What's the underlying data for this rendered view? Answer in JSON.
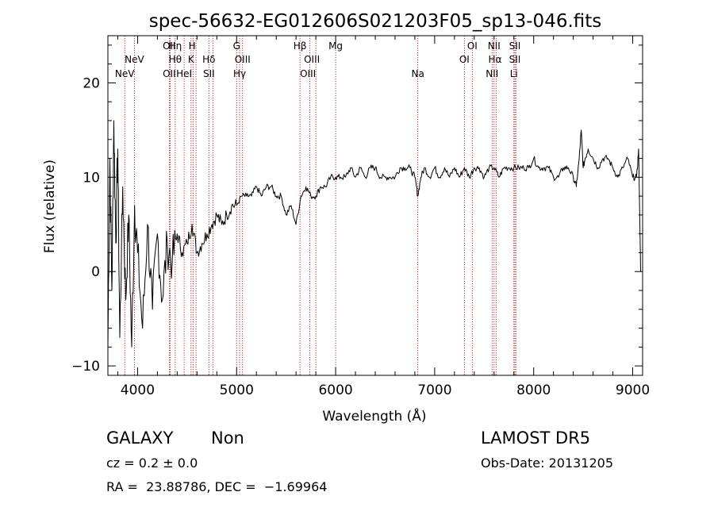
{
  "chart_data": {
    "type": "line",
    "title": "spec-56632-EG012606S021203F05_sp13-046.fits",
    "xlabel": "Wavelength (Å)",
    "ylabel": "Flux (relative)",
    "xlim": [
      3700,
      9100
    ],
    "ylim": [
      -11,
      25
    ],
    "xticks": [
      4000,
      5000,
      6000,
      7000,
      8000,
      9000
    ],
    "yticks": [
      -10,
      0,
      10,
      20
    ],
    "grid": false,
    "series": [
      {
        "x": [
          3700,
          3720,
          3740,
          3760,
          3780,
          3800,
          3820,
          3850,
          3880,
          3910,
          3940,
          3970,
          4000,
          4050,
          4100,
          4150,
          4200,
          4250,
          4300,
          4350,
          4400,
          4450,
          4500,
          4550,
          4600,
          4650,
          4700,
          4750,
          4800,
          4850,
          4900,
          4950,
          5000,
          5050,
          5100,
          5150,
          5200,
          5250,
          5300,
          5350,
          5400,
          5450,
          5500,
          5550,
          5600,
          5650,
          5700,
          5750,
          5800,
          5850,
          5900,
          5950,
          6000,
          6050,
          6100,
          6150,
          6200,
          6250,
          6300,
          6350,
          6400,
          6450,
          6500,
          6550,
          6600,
          6650,
          6700,
          6750,
          6800,
          6830,
          6860,
          6900,
          6950,
          7000,
          7050,
          7100,
          7150,
          7200,
          7250,
          7300,
          7350,
          7400,
          7450,
          7500,
          7550,
          7600,
          7650,
          7700,
          7750,
          7800,
          7850,
          7900,
          7950,
          8000,
          8050,
          8100,
          8150,
          8200,
          8250,
          8300,
          8350,
          8400,
          8430,
          8460,
          8480,
          8500,
          8520,
          8550,
          8600,
          8650,
          8700,
          8750,
          8800,
          8850,
          8900,
          8950,
          9000,
          9040,
          9060,
          9080
        ],
        "y": [
          -8,
          12,
          -2,
          16,
          3,
          13,
          -7,
          9,
          -3,
          6,
          -8,
          7,
          2,
          -6,
          5,
          -4,
          4,
          -3,
          3,
          1,
          4,
          2,
          3,
          5,
          2,
          3,
          4,
          5,
          6,
          5,
          6,
          7,
          7,
          8,
          8,
          8,
          9,
          8,
          9,
          9,
          8,
          8,
          6,
          7,
          5,
          8,
          9,
          8,
          8,
          9,
          9,
          10,
          10,
          10,
          10,
          11,
          10,
          11,
          10,
          11,
          11,
          10,
          10,
          10,
          10,
          11,
          11,
          11,
          10,
          8,
          10,
          11,
          10,
          11,
          10,
          11,
          10,
          11,
          10,
          11,
          10,
          11,
          11,
          10,
          11,
          11,
          10,
          11,
          11,
          11,
          11,
          11,
          11,
          12,
          11,
          11,
          11,
          10,
          10,
          11,
          11,
          10,
          9,
          12,
          15,
          11,
          12,
          13,
          12,
          11,
          12,
          12,
          11,
          10,
          11,
          12,
          10,
          10,
          13,
          0
        ]
      }
    ],
    "lines": [
      {
        "label": "NeV",
        "x": 3870,
        "row": 3
      },
      {
        "label": "NeV",
        "x": 3968,
        "row": 2
      },
      {
        "label": "OII",
        "x": 4320,
        "row": 1
      },
      {
        "label": "OII",
        "x": 4320,
        "row": 3
      },
      {
        "label": "Hη",
        "x": 4380,
        "row": 1
      },
      {
        "label": "Hθ",
        "x": 4380,
        "row": 2
      },
      {
        "label": "HeI",
        "x": 4470,
        "row": 3
      },
      {
        "label": "H",
        "x": 4550,
        "row": 1
      },
      {
        "label": "K",
        "x": 4540,
        "row": 2
      },
      {
        "label": "Hδ",
        "x": 4720,
        "row": 2
      },
      {
        "label": "SII",
        "x": 4720,
        "row": 3
      },
      {
        "label": "G",
        "x": 5000,
        "row": 1
      },
      {
        "label": "OIII",
        "x": 5060,
        "row": 2
      },
      {
        "label": "Hγ",
        "x": 5030,
        "row": 3
      },
      {
        "label": "Hβ",
        "x": 5640,
        "row": 1
      },
      {
        "label": "OIII",
        "x": 5760,
        "row": 2
      },
      {
        "label": "OIII",
        "x": 5720,
        "row": 3
      },
      {
        "label": "Mg",
        "x": 6000,
        "row": 1
      },
      {
        "label": "Na",
        "x": 6830,
        "row": 3
      },
      {
        "label": "OI",
        "x": 7380,
        "row": 1
      },
      {
        "label": "OI",
        "x": 7300,
        "row": 2
      },
      {
        "label": "NII",
        "x": 7600,
        "row": 1
      },
      {
        "label": "Hα",
        "x": 7610,
        "row": 2
      },
      {
        "label": "NII",
        "x": 7580,
        "row": 3
      },
      {
        "label": "SII",
        "x": 7810,
        "row": 1
      },
      {
        "label": "SII",
        "x": 7810,
        "row": 2
      },
      {
        "label": "Li",
        "x": 7800,
        "row": 3
      }
    ],
    "line_positions": [
      3870,
      3968,
      4320,
      4330,
      4380,
      4470,
      4540,
      4560,
      4590,
      4720,
      4760,
      5000,
      5030,
      5060,
      5640,
      5740,
      5800,
      6000,
      6830,
      7300,
      7380,
      7580,
      7600,
      7620,
      7800,
      7810,
      7820
    ]
  },
  "info": {
    "class": "GALAXY",
    "subclass": "Non",
    "cz": "cz = 0.2 ± 0.0",
    "radec": "RA =  23.88786, DEC =  −1.69964",
    "survey": "LAMOST DR5",
    "obsdate": "Obs-Date: 20131205"
  }
}
